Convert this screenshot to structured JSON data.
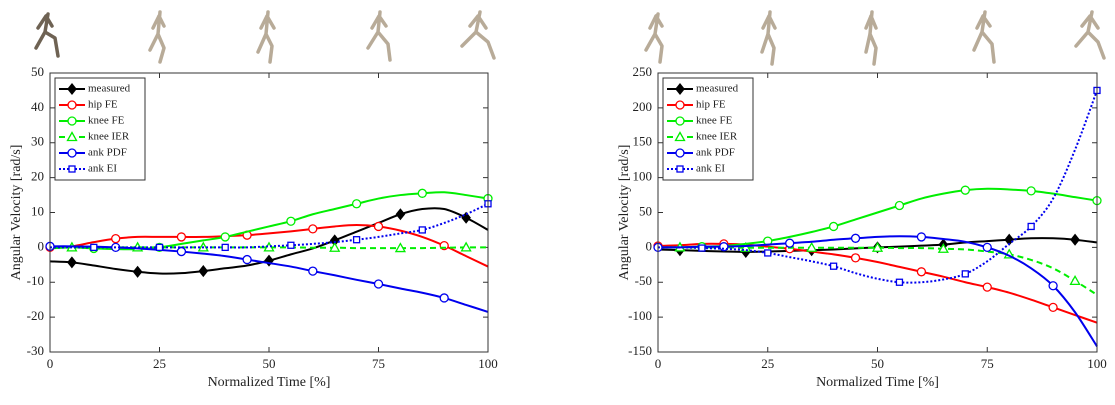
{
  "chart_data": [
    {
      "type": "line",
      "xlabel": "Normalized Time [%]",
      "ylabel": "Angular Velocity [rad/s]",
      "x": [
        0,
        5,
        10,
        15,
        20,
        25,
        30,
        35,
        40,
        45,
        50,
        55,
        60,
        65,
        70,
        75,
        80,
        85,
        90,
        95,
        100
      ],
      "xlim": [
        0,
        100
      ],
      "xticks": [
        0,
        25,
        50,
        75,
        100
      ],
      "ylim": [
        -30,
        50
      ],
      "yticks": [
        -30,
        -20,
        -10,
        0,
        10,
        20,
        30,
        40,
        50
      ],
      "legend": "upper left",
      "series": [
        {
          "name": "measured",
          "color": "#000000",
          "marker": "diamond",
          "linestyle": "solid",
          "values": [
            -4,
            -4.3,
            -5.2,
            -6.2,
            -7,
            -7.5,
            -7.4,
            -6.8,
            -6,
            -5.2,
            -3.8,
            -2,
            -0.3,
            2,
            4.5,
            7,
            9.5,
            11,
            11,
            8.5,
            5
          ]
        },
        {
          "name": "hip FE",
          "color": "#ff0000",
          "marker": "circle",
          "linestyle": "solid",
          "values": [
            0,
            0.3,
            1.5,
            2.5,
            3,
            3,
            3,
            3,
            3.2,
            3.5,
            4,
            4.6,
            5.3,
            6,
            6.4,
            6,
            4.8,
            3,
            0.5,
            -2.5,
            -5.5
          ]
        },
        {
          "name": "knee FE",
          "color": "#00ee00",
          "marker": "circle",
          "linestyle": "solid",
          "values": [
            -0.3,
            0,
            -0.3,
            -0.5,
            -0.5,
            0,
            1,
            2,
            3,
            4.5,
            6,
            7.5,
            9.5,
            11,
            12.5,
            14,
            15,
            15.5,
            15.8,
            15,
            14
          ]
        },
        {
          "name": "knee IER",
          "color": "#00ee00",
          "marker": "triangle",
          "linestyle": "dashed",
          "values": [
            0,
            0,
            0,
            0,
            0,
            0,
            0,
            0,
            0,
            0,
            0,
            0,
            -0.1,
            -0.1,
            -0.2,
            -0.2,
            -0.2,
            -0.2,
            -0.1,
            0,
            0
          ]
        },
        {
          "name": "ank PDF",
          "color": "#0000ee",
          "marker": "circle",
          "linestyle": "solid",
          "values": [
            0.3,
            0.3,
            0.2,
            0,
            -0.3,
            -0.7,
            -1.2,
            -1.8,
            -2.5,
            -3.5,
            -4.5,
            -5.5,
            -6.8,
            -8,
            -9.3,
            -10.5,
            -11.8,
            -13,
            -14.5,
            -16.5,
            -18.5
          ]
        },
        {
          "name": "ank EI",
          "color": "#0000ee",
          "marker": "square",
          "linestyle": "dotted",
          "values": [
            0,
            0,
            0,
            0,
            0,
            0,
            0,
            0,
            0,
            0,
            0.3,
            0.6,
            1,
            1.5,
            2.2,
            3,
            4,
            5,
            7,
            9.5,
            12.5
          ]
        }
      ]
    },
    {
      "type": "line",
      "xlabel": "Normalized Time [%]",
      "ylabel": "Angular Velocity [rad/s]",
      "x": [
        0,
        5,
        10,
        15,
        20,
        25,
        30,
        35,
        40,
        45,
        50,
        55,
        60,
        65,
        70,
        75,
        80,
        85,
        90,
        95,
        100
      ],
      "xlim": [
        0,
        100
      ],
      "xticks": [
        0,
        25,
        50,
        75,
        100
      ],
      "ylim": [
        -150,
        250
      ],
      "yticks": [
        -150,
        -100,
        -50,
        0,
        50,
        100,
        150,
        200,
        250
      ],
      "legend": "upper left",
      "series": [
        {
          "name": "measured",
          "color": "#000000",
          "marker": "diamond",
          "linestyle": "solid",
          "values": [
            -3,
            -4,
            -5,
            -6,
            -6.5,
            -6,
            -5,
            -4,
            -3,
            -1.5,
            0,
            1,
            2.5,
            4,
            7,
            9,
            11,
            13,
            13,
            11,
            7
          ]
        },
        {
          "name": "hip FE",
          "color": "#ff0000",
          "marker": "circle",
          "linestyle": "solid",
          "values": [
            2,
            3,
            5,
            5,
            4,
            1,
            -2,
            -6,
            -10,
            -15,
            -21,
            -28,
            -35,
            -42,
            -50,
            -57,
            -65,
            -75,
            -86,
            -97,
            -108
          ]
        },
        {
          "name": "knee FE",
          "color": "#00ee00",
          "marker": "circle",
          "linestyle": "solid",
          "values": [
            0,
            0,
            1,
            2,
            5,
            9,
            15,
            22,
            30,
            40,
            50,
            60,
            70,
            77,
            82,
            84,
            83,
            81,
            77,
            72,
            67
          ]
        },
        {
          "name": "knee IER",
          "color": "#00ee00",
          "marker": "triangle",
          "linestyle": "dashed",
          "values": [
            0,
            0,
            0,
            0,
            -0.5,
            -0.5,
            -0.5,
            -0.5,
            -0.5,
            -0.5,
            -0.5,
            -1,
            -1,
            -2,
            -3,
            -6,
            -10,
            -18,
            -30,
            -48,
            -68
          ]
        },
        {
          "name": "ank PDF",
          "color": "#0000ee",
          "marker": "circle",
          "linestyle": "solid",
          "values": [
            0,
            0,
            1,
            1,
            2,
            4,
            6,
            8,
            11,
            13,
            15,
            16,
            15,
            12,
            8,
            0,
            -12,
            -30,
            -55,
            -93,
            -142
          ]
        },
        {
          "name": "ank EI",
          "color": "#0000ee",
          "marker": "square",
          "linestyle": "dotted",
          "values": [
            0,
            0,
            -1,
            -2,
            -4,
            -8,
            -14,
            -20,
            -27,
            -37,
            -45,
            -50,
            -50,
            -46,
            -38,
            -20,
            5,
            30,
            70,
            140,
            225
          ]
        }
      ]
    }
  ]
}
